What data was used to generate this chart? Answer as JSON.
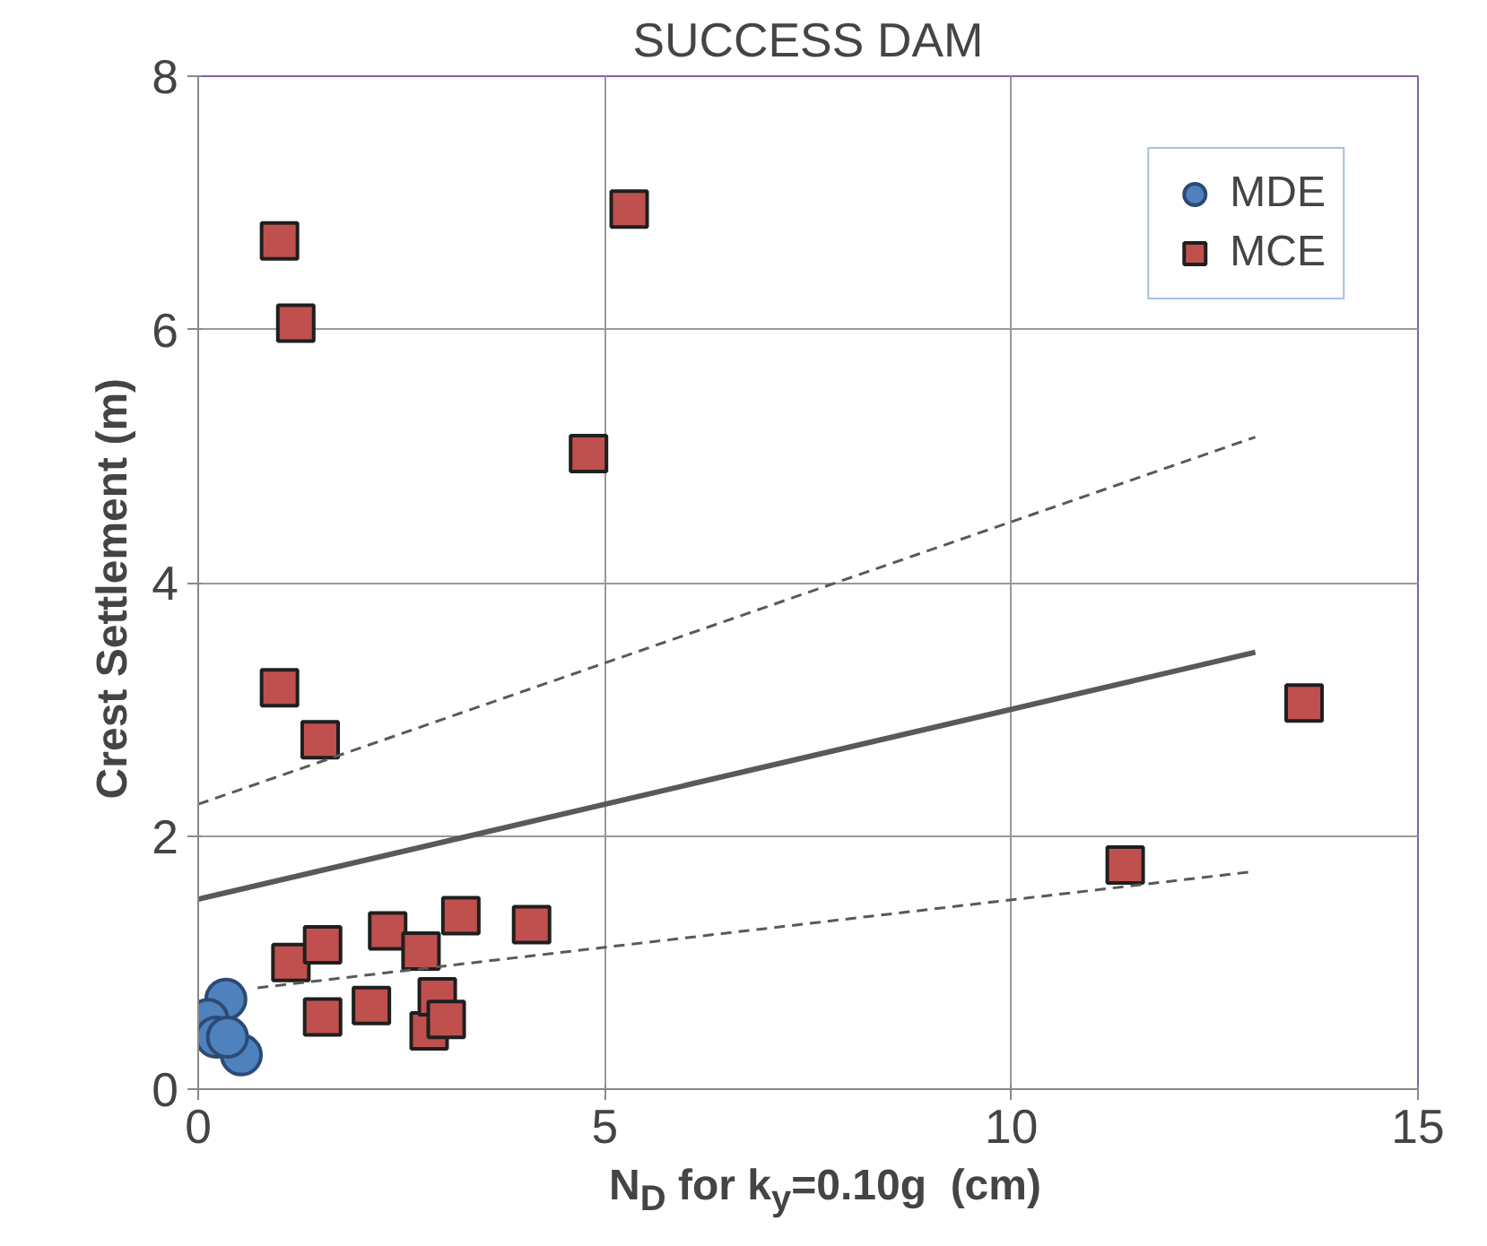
{
  "chart_data": {
    "type": "scatter",
    "title": "SUCCESS DAM",
    "xlabel": "N$_{D}$ for k$_{y}$=0.10g  (cm)",
    "ylabel": "Crest Settlement  (m)",
    "xlim": [
      0,
      15
    ],
    "xticks": [
      0,
      5,
      10,
      15
    ],
    "ylim": [
      0,
      8
    ],
    "yticks": [
      0,
      2,
      4,
      6,
      8
    ],
    "grid": true,
    "legend": "top right",
    "series": [
      {
        "name": "MDE",
        "color": "#4f81bd",
        "marker": "circle",
        "x": [
          0.34,
          0.12,
          0.53,
          0.22,
          0.36
        ],
        "values": [
          0.71,
          0.55,
          0.27,
          0.41,
          0.41
        ]
      },
      {
        "name": "MCE",
        "color": "#c0504d",
        "marker": "square",
        "x": [
          1.0,
          1.2,
          5.3,
          4.8,
          1.0,
          1.5,
          11.4,
          13.6,
          1.14,
          1.53,
          2.33,
          2.74,
          3.23,
          4.1,
          1.53,
          2.13,
          2.84,
          2.94,
          3.05
        ],
        "values": [
          6.7,
          6.05,
          6.95,
          5.02,
          3.17,
          2.76,
          1.77,
          3.05,
          1.0,
          1.14,
          1.25,
          1.09,
          1.37,
          1.3,
          0.57,
          0.66,
          0.46,
          0.73,
          0.55
        ]
      },
      {
        "type": "line",
        "color": "#595959",
        "line_style": "solid",
        "x": [
          0,
          13
        ],
        "values": [
          1.5,
          3.45
        ]
      },
      {
        "type": "line",
        "color": "#595959",
        "line_style": "dashed",
        "x": [
          0,
          13
        ],
        "values": [
          2.25,
          5.15
        ]
      },
      {
        "type": "line",
        "color": "#595959",
        "line_style": "dashed",
        "x": [
          0.73,
          13
        ],
        "values": [
          0.8,
          1.72
        ]
      }
    ]
  }
}
